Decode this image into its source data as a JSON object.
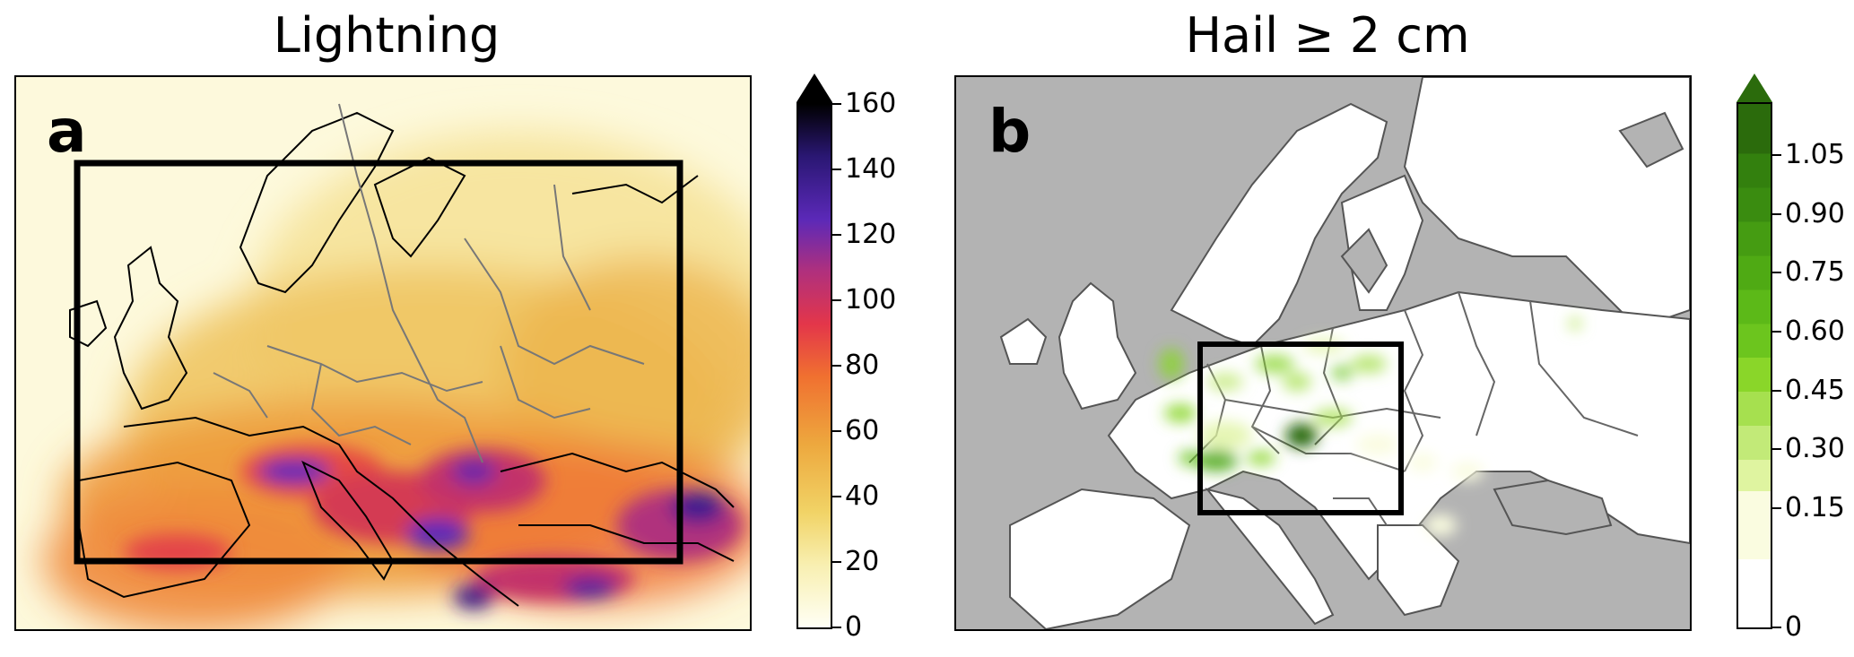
{
  "panels": [
    {
      "title": "Lightning",
      "letter": "a",
      "colorbar": {
        "ticks": [
          "0",
          "20",
          "40",
          "60",
          "80",
          "100",
          "120",
          "140",
          "160"
        ],
        "extend": "max",
        "colors": [
          "#fffff5",
          "#f8efb0",
          "#f1d366",
          "#eda83e",
          "#f07030",
          "#e3364a",
          "#b0307d",
          "#5b29b8",
          "#2a1773",
          "#000000"
        ]
      },
      "box_color": "#000000"
    },
    {
      "title": "Hail ≥ 2 cm",
      "letter": "b",
      "colorbar": {
        "ticks": [
          "0",
          "0.15",
          "0.30",
          "0.45",
          "0.60",
          "0.75",
          "0.90",
          "1.05"
        ],
        "extend": "max",
        "colors": [
          "#ffffff",
          "#fafce0",
          "#dff4a0",
          "#c2ea78",
          "#a6e04f",
          "#8ad629",
          "#6cc51e",
          "#4faa14",
          "#3a8c10",
          "#2b6b0c"
        ]
      },
      "ocean_color": "#b3b3b3",
      "land_color": "#ffffff"
    }
  ]
}
